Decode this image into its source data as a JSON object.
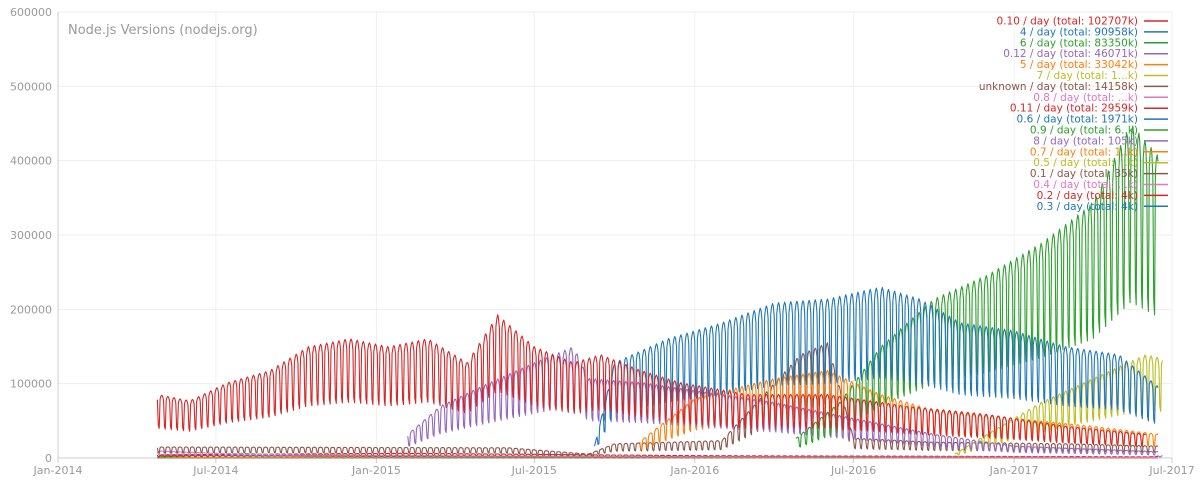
{
  "chart_data": {
    "type": "line",
    "title": "Node.js Versions (nodejs.org)",
    "xlabel": "",
    "ylabel": "",
    "x_range": [
      "2014-01-01",
      "2017-07-01"
    ],
    "ylim": [
      0,
      600000
    ],
    "y_ticks": [
      0,
      100000,
      200000,
      300000,
      400000,
      500000,
      600000
    ],
    "x_ticks": [
      {
        "date": "2014-01-01",
        "label": "Jan-2014"
      },
      {
        "date": "2014-07-01",
        "label": "Jul-2014"
      },
      {
        "date": "2015-01-01",
        "label": "Jan-2015"
      },
      {
        "date": "2015-07-01",
        "label": "Jul-2015"
      },
      {
        "date": "2016-01-01",
        "label": "Jan-2016"
      },
      {
        "date": "2016-07-01",
        "label": "Jul-2016"
      },
      {
        "date": "2017-01-01",
        "label": "Jan-2017"
      },
      {
        "date": "2017-07-01",
        "label": "Jul-2017"
      }
    ],
    "grid": true,
    "legend_position": "top-right",
    "weekly_pattern": [
      1.0,
      1.05,
      1.07,
      1.05,
      0.98,
      0.55,
      0.5
    ],
    "series": [
      {
        "name": "0.10 / day (total: 102707k)",
        "color": "#d62728",
        "points": [
          [
            "2014-04-25",
            80000
          ],
          [
            "2014-06-01",
            72000
          ],
          [
            "2014-07-15",
            95000
          ],
          [
            "2014-09-01",
            110000
          ],
          [
            "2014-10-15",
            140000
          ],
          [
            "2014-12-01",
            150000
          ],
          [
            "2015-01-15",
            140000
          ],
          [
            "2015-03-01",
            150000
          ],
          [
            "2015-04-15",
            120000
          ],
          [
            "2015-05-20",
            180000
          ],
          [
            "2015-07-01",
            140000
          ],
          [
            "2015-08-15",
            120000
          ],
          [
            "2015-09-15",
            130000
          ],
          [
            "2015-11-01",
            110000
          ],
          [
            "2015-12-15",
            95000
          ],
          [
            "2016-03-01",
            80000
          ],
          [
            "2016-06-01",
            80000
          ],
          [
            "2016-09-01",
            65000
          ],
          [
            "2016-12-01",
            55000
          ],
          [
            "2017-03-01",
            40000
          ],
          [
            "2017-06-01",
            30000
          ]
        ]
      },
      {
        "name": "4 / day (total: 90958k)",
        "color": "#1f77b4",
        "points": [
          [
            "2015-09-08",
            15000
          ],
          [
            "2015-10-01",
            120000
          ],
          [
            "2015-12-01",
            150000
          ],
          [
            "2016-02-01",
            170000
          ],
          [
            "2016-04-01",
            195000
          ],
          [
            "2016-06-01",
            200000
          ],
          [
            "2016-08-01",
            215000
          ],
          [
            "2016-09-15",
            200000
          ],
          [
            "2016-11-01",
            170000
          ],
          [
            "2017-01-01",
            160000
          ],
          [
            "2017-03-01",
            140000
          ],
          [
            "2017-05-01",
            130000
          ],
          [
            "2017-06-15",
            90000
          ]
        ]
      },
      {
        "name": "6 / day (total: 83350k)",
        "color": "#2ca02c",
        "points": [
          [
            "2016-04-26",
            25000
          ],
          [
            "2016-06-15",
            70000
          ],
          [
            "2016-08-01",
            140000
          ],
          [
            "2016-10-01",
            200000
          ],
          [
            "2016-12-01",
            230000
          ],
          [
            "2017-02-01",
            270000
          ],
          [
            "2017-04-01",
            320000
          ],
          [
            "2017-05-15",
            420000
          ],
          [
            "2017-06-15",
            380000
          ]
        ]
      },
      {
        "name": "0.12 / day (total: 46071k)",
        "color": "#9467bd",
        "points": [
          [
            "2015-02-06",
            30000
          ],
          [
            "2015-03-15",
            65000
          ],
          [
            "2015-05-01",
            90000
          ],
          [
            "2015-07-01",
            120000
          ],
          [
            "2015-08-15",
            140000
          ],
          [
            "2015-09-01",
            100000
          ],
          [
            "2015-11-01",
            95000
          ],
          [
            "2016-01-01",
            85000
          ],
          [
            "2016-04-01",
            70000
          ],
          [
            "2016-07-01",
            50000
          ],
          [
            "2016-10-01",
            30000
          ],
          [
            "2017-01-01",
            15000
          ],
          [
            "2017-06-15",
            8000
          ]
        ]
      },
      {
        "name": "5 / day (total: 33042k)",
        "color": "#ff7f0e",
        "points": [
          [
            "2015-10-29",
            20000
          ],
          [
            "2016-01-01",
            75000
          ],
          [
            "2016-04-01",
            100000
          ],
          [
            "2016-06-01",
            110000
          ],
          [
            "2016-08-01",
            80000
          ],
          [
            "2016-10-01",
            60000
          ],
          [
            "2017-01-01",
            50000
          ],
          [
            "2017-04-01",
            40000
          ],
          [
            "2017-06-15",
            30000
          ]
        ]
      },
      {
        "name": "7 / day (total: 1...k)",
        "color": "#bcbd22",
        "points": [
          [
            "2016-10-25",
            5000
          ],
          [
            "2016-12-01",
            30000
          ],
          [
            "2017-02-01",
            70000
          ],
          [
            "2017-04-01",
            100000
          ],
          [
            "2017-06-01",
            130000
          ],
          [
            "2017-06-20",
            125000
          ]
        ]
      },
      {
        "name": "unknown / day (total: 14158k)",
        "color": "#8c564b",
        "points": [
          [
            "2014-04-25",
            14000
          ],
          [
            "2015-06-01",
            13000
          ],
          [
            "2015-09-01",
            5000
          ],
          [
            "2015-10-01",
            18000
          ],
          [
            "2016-02-01",
            22000
          ],
          [
            "2016-05-01",
            130000
          ],
          [
            "2016-06-01",
            145000
          ],
          [
            "2016-07-01",
            25000
          ],
          [
            "2016-10-01",
            20000
          ],
          [
            "2017-03-01",
            18000
          ],
          [
            "2017-06-15",
            15000
          ]
        ]
      },
      {
        "name": "0.8 / day (total: ...k)",
        "color": "#e377c2",
        "points": [
          [
            "2014-04-25",
            9000
          ],
          [
            "2014-07-01",
            6000
          ],
          [
            "2014-10-01",
            4000
          ],
          [
            "2015-03-01",
            3000
          ],
          [
            "2016-01-01",
            1500
          ],
          [
            "2017-06-15",
            800
          ]
        ]
      },
      {
        "name": "0.11 / day (total: 2959k)",
        "color": "#d62728",
        "points": [
          [
            "2014-04-25",
            4000
          ],
          [
            "2014-09-01",
            5000
          ],
          [
            "2015-02-01",
            6000
          ],
          [
            "2015-06-01",
            5000
          ],
          [
            "2016-01-01",
            3000
          ],
          [
            "2017-06-15",
            1500
          ]
        ]
      },
      {
        "name": "0.6 / day (total: 1971k)",
        "color": "#1f77b4",
        "points": [
          [
            "2014-04-25",
            3500
          ],
          [
            "2015-01-01",
            2500
          ],
          [
            "2016-01-01",
            1500
          ],
          [
            "2017-06-15",
            800
          ]
        ]
      },
      {
        "name": "0.9 / day (total: 6..k)",
        "color": "#2ca02c",
        "points": [
          [
            "2014-04-25",
            1500
          ],
          [
            "2014-08-01",
            6000
          ],
          [
            "2014-10-15",
            2500
          ],
          [
            "2015-06-01",
            1200
          ],
          [
            "2017-06-15",
            400
          ]
        ]
      },
      {
        "name": "8 / day (total: 105k)",
        "color": "#9467bd",
        "points": [
          [
            "2017-05-30",
            500
          ],
          [
            "2017-06-20",
            3000
          ]
        ]
      },
      {
        "name": "0.7 / day (total: 1..k)",
        "color": "#ff7f0e",
        "points": [
          [
            "2014-04-25",
            1200
          ],
          [
            "2015-06-01",
            800
          ],
          [
            "2017-06-15",
            300
          ]
        ]
      },
      {
        "name": "0.5 / day (total: ...k)",
        "color": "#bcbd22",
        "points": [
          [
            "2014-04-25",
            900
          ],
          [
            "2015-06-01",
            600
          ],
          [
            "2017-06-15",
            200
          ]
        ]
      },
      {
        "name": "0.1 / day (total: 35k)",
        "color": "#8c564b",
        "points": [
          [
            "2014-04-25",
            300
          ],
          [
            "2017-06-15",
            100
          ]
        ]
      },
      {
        "name": "0.4 / day (total: ...k)",
        "color": "#e377c2",
        "points": [
          [
            "2014-04-25",
            300
          ],
          [
            "2017-06-15",
            100
          ]
        ]
      },
      {
        "name": "0.2 / day (total: 4k)",
        "color": "#d62728",
        "points": [
          [
            "2014-04-25",
            200
          ],
          [
            "2017-06-15",
            80
          ]
        ]
      },
      {
        "name": "0.3 / day (total: 4k)",
        "color": "#1f77b4",
        "points": [
          [
            "2014-04-25",
            200
          ],
          [
            "2017-06-15",
            80
          ]
        ]
      }
    ]
  }
}
